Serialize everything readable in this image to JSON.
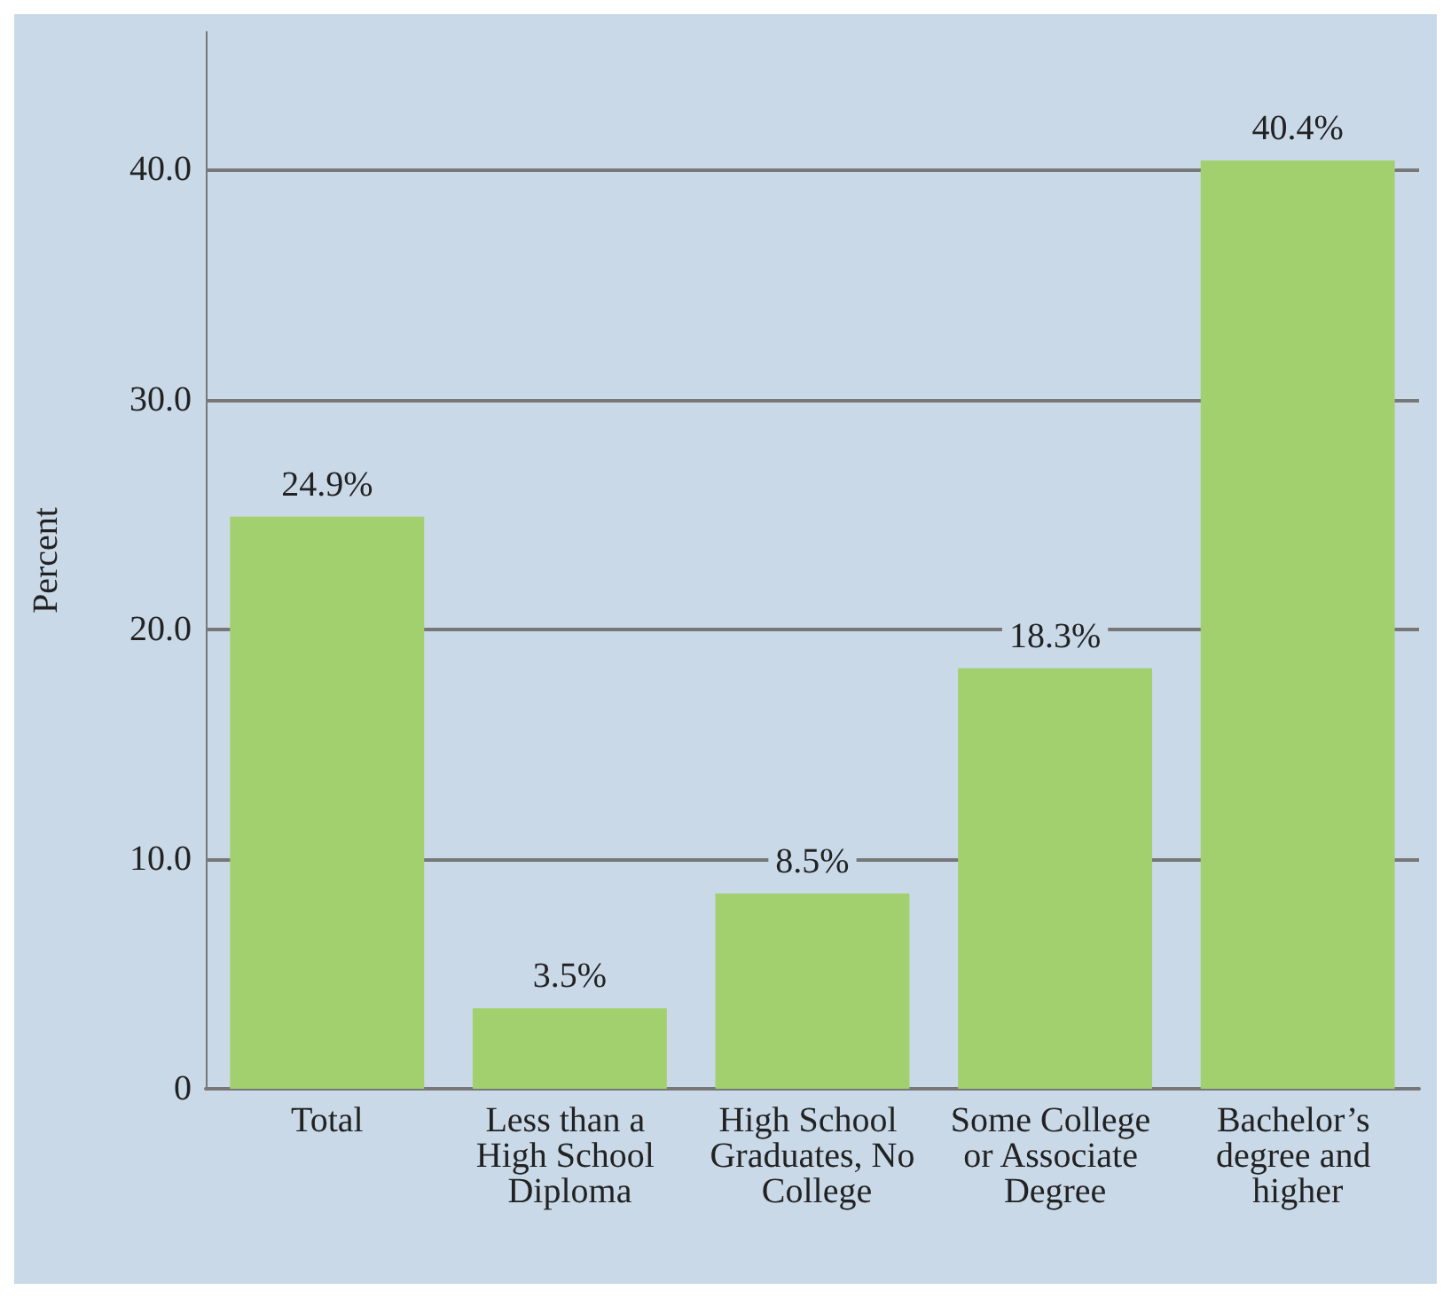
{
  "chart_data": {
    "type": "bar",
    "ylabel": "Percent",
    "categories": [
      "Total",
      "Less than a High School Diploma",
      "High School Graduates, No College",
      "Some College or Associate Degree",
      "Bachelor’s degree and higher"
    ],
    "values": [
      24.9,
      3.5,
      8.5,
      18.3,
      40.4
    ],
    "value_labels": [
      "24.9%",
      "3.5%",
      "8.5%",
      "18.3%",
      "40.4%"
    ],
    "color": "#a3d06e",
    "ylim": [
      0,
      46
    ],
    "yticks": [
      {
        "value": 0,
        "label": "0"
      },
      {
        "value": 10,
        "label": "10.0"
      },
      {
        "value": 20,
        "label": "20.0"
      },
      {
        "value": 30,
        "label": "30.0"
      },
      {
        "value": 40,
        "label": "40.0"
      }
    ],
    "grid": "y"
  }
}
